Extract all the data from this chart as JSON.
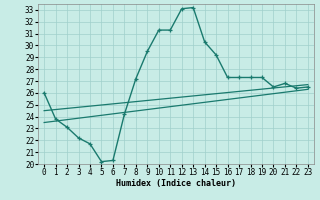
{
  "xlabel": "Humidex (Indice chaleur)",
  "xlim": [
    -0.5,
    23.5
  ],
  "ylim": [
    20,
    33.5
  ],
  "xticks": [
    0,
    1,
    2,
    3,
    4,
    5,
    6,
    7,
    8,
    9,
    10,
    11,
    12,
    13,
    14,
    15,
    16,
    17,
    18,
    19,
    20,
    21,
    22,
    23
  ],
  "yticks": [
    20,
    21,
    22,
    23,
    24,
    25,
    26,
    27,
    28,
    29,
    30,
    31,
    32,
    33
  ],
  "bg_color": "#c8ece6",
  "grid_color": "#a0d0cc",
  "line_color": "#1a7a6e",
  "main_x": [
    0,
    1,
    2,
    3,
    4,
    5,
    6,
    7,
    8,
    9,
    10,
    11,
    12,
    13,
    14,
    15,
    16,
    17,
    18,
    19,
    20,
    21,
    22,
    23
  ],
  "main_y": [
    26.0,
    23.8,
    23.1,
    22.2,
    21.7,
    20.2,
    20.3,
    24.2,
    27.2,
    29.5,
    31.3,
    31.3,
    33.1,
    33.2,
    30.3,
    29.2,
    27.3,
    27.3,
    27.3,
    27.3,
    26.5,
    26.8,
    26.4,
    26.5
  ],
  "line2_x": [
    0,
    23
  ],
  "line2_y": [
    23.5,
    26.3
  ],
  "line3_x": [
    0,
    23
  ],
  "line3_y": [
    24.5,
    26.7
  ]
}
